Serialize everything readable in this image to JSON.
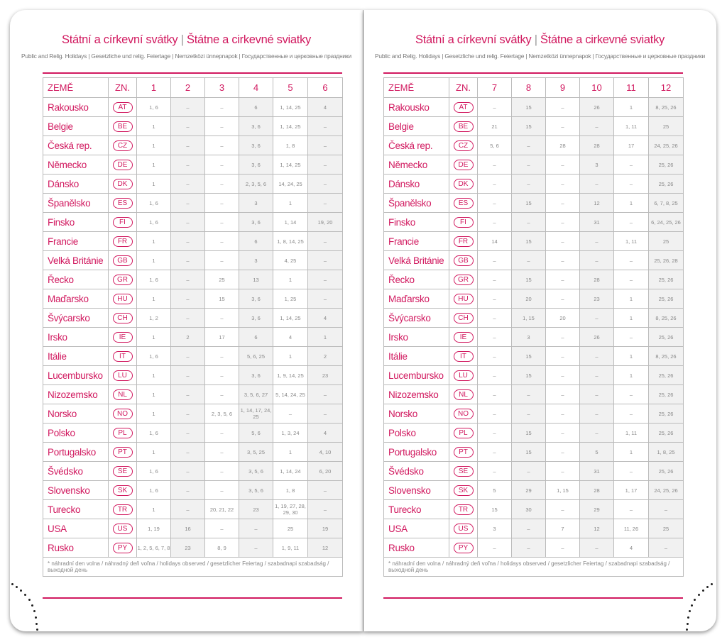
{
  "title_cz": "Státní a církevní svátky",
  "title_sk": "Štátne a cirkevné sviatky",
  "subtitle": "Public and Relig. Holidays | Gesetzliche und relig. Feiertage | Nemzetközi ünnepnapok | Государственные и церковные праздники",
  "header_country": "ZEMĚ",
  "header_code": "ZN.",
  "footnote": "* náhradní den volna / náhradný deň voľna / holidays observed / gesetzlicher Feiertag / szabadnapi szabadság / выходной день",
  "accent_color": "#d1195f",
  "countries": [
    {
      "name": "Rakousko",
      "code": "AT"
    },
    {
      "name": "Belgie",
      "code": "BE"
    },
    {
      "name": "Česká rep.",
      "code": "CZ"
    },
    {
      "name": "Německo",
      "code": "DE"
    },
    {
      "name": "Dánsko",
      "code": "DK"
    },
    {
      "name": "Španělsko",
      "code": "ES"
    },
    {
      "name": "Finsko",
      "code": "FI"
    },
    {
      "name": "Francie",
      "code": "FR"
    },
    {
      "name": "Velká Británie",
      "code": "GB"
    },
    {
      "name": "Řecko",
      "code": "GR"
    },
    {
      "name": "Maďarsko",
      "code": "HU"
    },
    {
      "name": "Švýcarsko",
      "code": "CH"
    },
    {
      "name": "Irsko",
      "code": "IE"
    },
    {
      "name": "Itálie",
      "code": "IT"
    },
    {
      "name": "Lucembursko",
      "code": "LU"
    },
    {
      "name": "Nizozemsko",
      "code": "NL"
    },
    {
      "name": "Norsko",
      "code": "NO"
    },
    {
      "name": "Polsko",
      "code": "PL"
    },
    {
      "name": "Portugalsko",
      "code": "PT"
    },
    {
      "name": "Švédsko",
      "code": "SE"
    },
    {
      "name": "Slovensko",
      "code": "SK"
    },
    {
      "name": "Turecko",
      "code": "TR"
    },
    {
      "name": "USA",
      "code": "US"
    },
    {
      "name": "Rusko",
      "code": "PY"
    }
  ],
  "left_months": [
    "1",
    "2",
    "3",
    "4",
    "5",
    "6"
  ],
  "right_months": [
    "7",
    "8",
    "9",
    "10",
    "11",
    "12"
  ],
  "left_values": [
    [
      "1, 6",
      "–",
      "–",
      "6",
      "1, 14, 25",
      "4"
    ],
    [
      "1",
      "–",
      "–",
      "3, 6",
      "1, 14, 25",
      "–"
    ],
    [
      "1",
      "–",
      "–",
      "3, 6",
      "1, 8",
      "–"
    ],
    [
      "1",
      "–",
      "–",
      "3, 6",
      "1, 14, 25",
      "–"
    ],
    [
      "1",
      "–",
      "–",
      "2, 3, 5, 6",
      "14, 24, 25",
      "–"
    ],
    [
      "1, 6",
      "–",
      "–",
      "3",
      "1",
      "–"
    ],
    [
      "1, 6",
      "–",
      "–",
      "3, 6",
      "1, 14",
      "19, 20"
    ],
    [
      "1",
      "–",
      "–",
      "6",
      "1, 8, 14, 25",
      "–"
    ],
    [
      "1",
      "–",
      "–",
      "3",
      "4, 25",
      "–"
    ],
    [
      "1, 6",
      "–",
      "25",
      "13",
      "1",
      "–"
    ],
    [
      "1",
      "–",
      "15",
      "3, 6",
      "1, 25",
      "–"
    ],
    [
      "1, 2",
      "–",
      "–",
      "3, 6",
      "1, 14, 25",
      "4"
    ],
    [
      "1",
      "2",
      "17",
      "6",
      "4",
      "1"
    ],
    [
      "1, 6",
      "–",
      "–",
      "5, 6, 25",
      "1",
      "2"
    ],
    [
      "1",
      "–",
      "–",
      "3, 6",
      "1, 9, 14, 25",
      "23"
    ],
    [
      "1",
      "–",
      "–",
      "3, 5, 6, 27",
      "5, 14, 24, 25",
      "–"
    ],
    [
      "1",
      "–",
      "2, 3, 5, 6",
      "1, 14, 17, 24, 25",
      "–",
      "–"
    ],
    [
      "1, 6",
      "–",
      "–",
      "5, 6",
      "1, 3, 24",
      "4"
    ],
    [
      "1",
      "–",
      "–",
      "3, 5, 25",
      "1",
      "4, 10"
    ],
    [
      "1, 6",
      "–",
      "–",
      "3, 5, 6",
      "1, 14, 24",
      "6, 20"
    ],
    [
      "1, 6",
      "–",
      "–",
      "3, 5, 6",
      "1, 8",
      "–"
    ],
    [
      "1",
      "–",
      "20, 21, 22",
      "23",
      "1, 19, 27, 28, 29, 30",
      "–"
    ],
    [
      "1, 19",
      "16",
      "–",
      "–",
      "25",
      "19"
    ],
    [
      "1, 2, 5, 6, 7, 8",
      "23",
      "8, 9",
      "–",
      "1, 9, 11",
      "12"
    ]
  ],
  "right_values": [
    [
      "–",
      "15",
      "–",
      "26",
      "1",
      "8, 25, 26"
    ],
    [
      "21",
      "15",
      "–",
      "–",
      "1, 11",
      "25"
    ],
    [
      "5, 6",
      "–",
      "28",
      "28",
      "17",
      "24, 25, 26"
    ],
    [
      "–",
      "–",
      "–",
      "3",
      "–",
      "25, 26"
    ],
    [
      "–",
      "–",
      "–",
      "–",
      "–",
      "25, 26"
    ],
    [
      "–",
      "15",
      "–",
      "12",
      "1",
      "6, 7, 8, 25"
    ],
    [
      "–",
      "–",
      "–",
      "31",
      "–",
      "6, 24, 25, 26"
    ],
    [
      "14",
      "15",
      "–",
      "–",
      "1, 11",
      "25"
    ],
    [
      "–",
      "–",
      "–",
      "–",
      "–",
      "25, 26, 28"
    ],
    [
      "–",
      "15",
      "–",
      "28",
      "–",
      "25, 26"
    ],
    [
      "–",
      "20",
      "–",
      "23",
      "1",
      "25, 26"
    ],
    [
      "–",
      "1, 15",
      "20",
      "–",
      "1",
      "8, 25, 26"
    ],
    [
      "–",
      "3",
      "–",
      "26",
      "–",
      "25, 26"
    ],
    [
      "–",
      "15",
      "–",
      "–",
      "1",
      "8, 25, 26"
    ],
    [
      "–",
      "15",
      "–",
      "–",
      "1",
      "25, 26"
    ],
    [
      "–",
      "–",
      "–",
      "–",
      "–",
      "25, 26"
    ],
    [
      "–",
      "–",
      "–",
      "–",
      "–",
      "25, 26"
    ],
    [
      "–",
      "15",
      "–",
      "–",
      "1, 11",
      "25, 26"
    ],
    [
      "–",
      "15",
      "–",
      "5",
      "1",
      "1, 8, 25"
    ],
    [
      "–",
      "–",
      "–",
      "31",
      "–",
      "25, 26"
    ],
    [
      "5",
      "29",
      "1, 15",
      "28",
      "1, 17",
      "24, 25, 26"
    ],
    [
      "15",
      "30",
      "–",
      "29",
      "–",
      "–"
    ],
    [
      "3",
      "–",
      "7",
      "12",
      "11, 26",
      "25"
    ],
    [
      "–",
      "–",
      "–",
      "–",
      "4",
      "–"
    ]
  ]
}
